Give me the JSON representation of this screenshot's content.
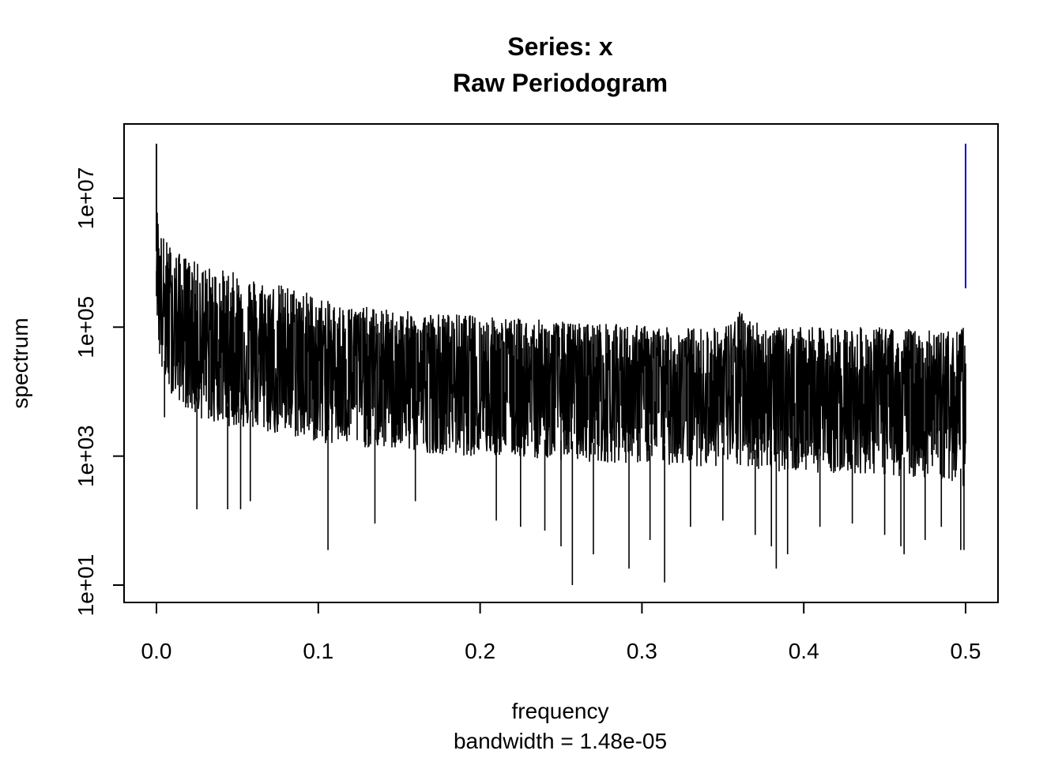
{
  "chart_data": {
    "type": "line",
    "title": "Series: x",
    "subtitle": "Raw Periodogram",
    "xlabel": "frequency",
    "sublabel": "bandwidth = 1.48e-05",
    "ylabel": "spectrum",
    "y_scale": "log10",
    "xlim": [
      0.0,
      0.5
    ],
    "ylim": [
      10,
      70000000
    ],
    "x_ticks": [
      0.0,
      0.1,
      0.2,
      0.3,
      0.4,
      0.5
    ],
    "x_tick_labels": [
      "0.0",
      "0.1",
      "0.2",
      "0.3",
      "0.4",
      "0.5"
    ],
    "y_ticks": [
      10,
      1000,
      100000,
      10000000
    ],
    "y_tick_labels": [
      "1e+01",
      "1e+03",
      "1e+05",
      "1e+07"
    ],
    "grid": false,
    "series": [
      {
        "color": "#000000",
        "x": [
          0.0,
          0.0003,
          0.001,
          0.002,
          0.003,
          0.005,
          0.008,
          0.012,
          0.02,
          0.025,
          0.03,
          0.04,
          0.05,
          0.06,
          0.07,
          0.08,
          0.09,
          0.1,
          0.107,
          0.12,
          0.135,
          0.15,
          0.17,
          0.19,
          0.2,
          0.22,
          0.24,
          0.257,
          0.27,
          0.29,
          0.3,
          0.314,
          0.33,
          0.35,
          0.36,
          0.38,
          0.383,
          0.4,
          0.42,
          0.44,
          0.45,
          0.462,
          0.47,
          0.48,
          0.49,
          0.499,
          0.5
        ],
        "upper": [
          70000000,
          8000000,
          6000000,
          4000000,
          3000000,
          2500000,
          2000000,
          1500000,
          1200000,
          1000000,
          900000,
          800000,
          700000,
          600000,
          500000,
          450000,
          400000,
          300000,
          250000,
          220000,
          200000,
          180000,
          170000,
          160000,
          150000,
          140000,
          130000,
          120000,
          120000,
          110000,
          110000,
          100000,
          100000,
          100000,
          180000,
          100000,
          100000,
          100000,
          100000,
          100000,
          100000,
          100000,
          90000,
          90000,
          90000,
          100000,
          30000
        ],
        "center": [
          1500000,
          600000,
          400000,
          300000,
          200000,
          150000,
          120000,
          90000,
          70000,
          60000,
          55000,
          50000,
          45000,
          40000,
          35000,
          30000,
          28000,
          25000,
          24000,
          22000,
          21000,
          20000,
          18000,
          17000,
          16000,
          15500,
          15000,
          14500,
          14000,
          13500,
          13000,
          12500,
          12000,
          11500,
          11000,
          10500,
          10200,
          10000,
          9500,
          9000,
          8800,
          8500,
          8200,
          8000,
          7800,
          7500,
          7000
        ],
        "lower": [
          300000,
          150000,
          80000,
          30000,
          20000,
          15000,
          10000,
          8000,
          5000,
          4000,
          3500,
          3000,
          2800,
          2500,
          2200,
          2000,
          1800,
          1600,
          1500,
          1400,
          1300,
          1200,
          1100,
          1000,
          1000,
          950,
          900,
          850,
          800,
          780,
          750,
          720,
          700,
          680,
          650,
          600,
          580,
          560,
          540,
          520,
          500,
          480,
          460,
          450,
          400,
          300,
          1000
        ],
        "spikes": [
          {
            "x": 0.005,
            "y": 4000
          },
          {
            "x": 0.025,
            "y": 150
          },
          {
            "x": 0.044,
            "y": 150
          },
          {
            "x": 0.052,
            "y": 150
          },
          {
            "x": 0.058,
            "y": 200
          },
          {
            "x": 0.106,
            "y": 35
          },
          {
            "x": 0.135,
            "y": 90
          },
          {
            "x": 0.16,
            "y": 200
          },
          {
            "x": 0.21,
            "y": 100
          },
          {
            "x": 0.225,
            "y": 80
          },
          {
            "x": 0.24,
            "y": 70
          },
          {
            "x": 0.25,
            "y": 40
          },
          {
            "x": 0.257,
            "y": 10
          },
          {
            "x": 0.27,
            "y": 30
          },
          {
            "x": 0.292,
            "y": 18
          },
          {
            "x": 0.305,
            "y": 50
          },
          {
            "x": 0.314,
            "y": 11
          },
          {
            "x": 0.33,
            "y": 80
          },
          {
            "x": 0.35,
            "y": 100
          },
          {
            "x": 0.37,
            "y": 60
          },
          {
            "x": 0.38,
            "y": 40
          },
          {
            "x": 0.383,
            "y": 18
          },
          {
            "x": 0.39,
            "y": 30
          },
          {
            "x": 0.41,
            "y": 80
          },
          {
            "x": 0.43,
            "y": 90
          },
          {
            "x": 0.45,
            "y": 60
          },
          {
            "x": 0.46,
            "y": 40
          },
          {
            "x": 0.462,
            "y": 30
          },
          {
            "x": 0.475,
            "y": 50
          },
          {
            "x": 0.485,
            "y": 80
          },
          {
            "x": 0.497,
            "y": 35
          },
          {
            "x": 0.499,
            "y": 35
          }
        ]
      },
      {
        "color": "#0000cc",
        "x": [
          0.5,
          0.5
        ],
        "y": [
          70000000,
          400000
        ]
      }
    ]
  }
}
